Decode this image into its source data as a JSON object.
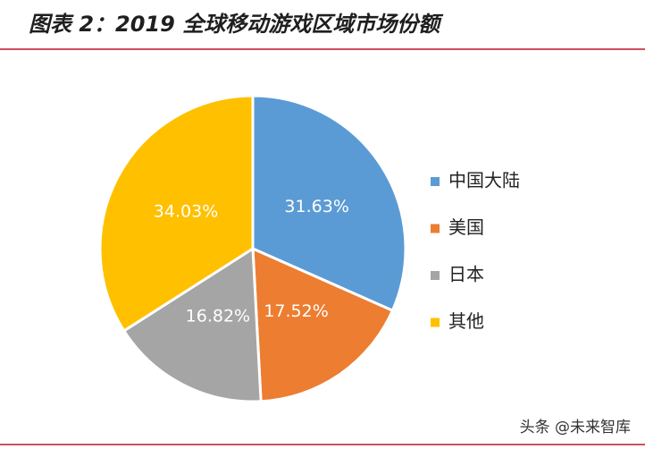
{
  "chart_data": {
    "type": "pie",
    "title": "图表 2：2019 全球移动游戏区域市场份额",
    "categories": [
      "中国大陆",
      "美国",
      "日本",
      "其他"
    ],
    "values": [
      31.63,
      17.52,
      16.82,
      34.03
    ],
    "value_labels": [
      "31.63%",
      "17.52%",
      "16.82%",
      "34.03%"
    ],
    "colors": [
      "#5b9bd5",
      "#ed7d31",
      "#a5a5a5",
      "#ffc000"
    ],
    "legend": "right"
  },
  "watermark": "头条 @未来智库"
}
